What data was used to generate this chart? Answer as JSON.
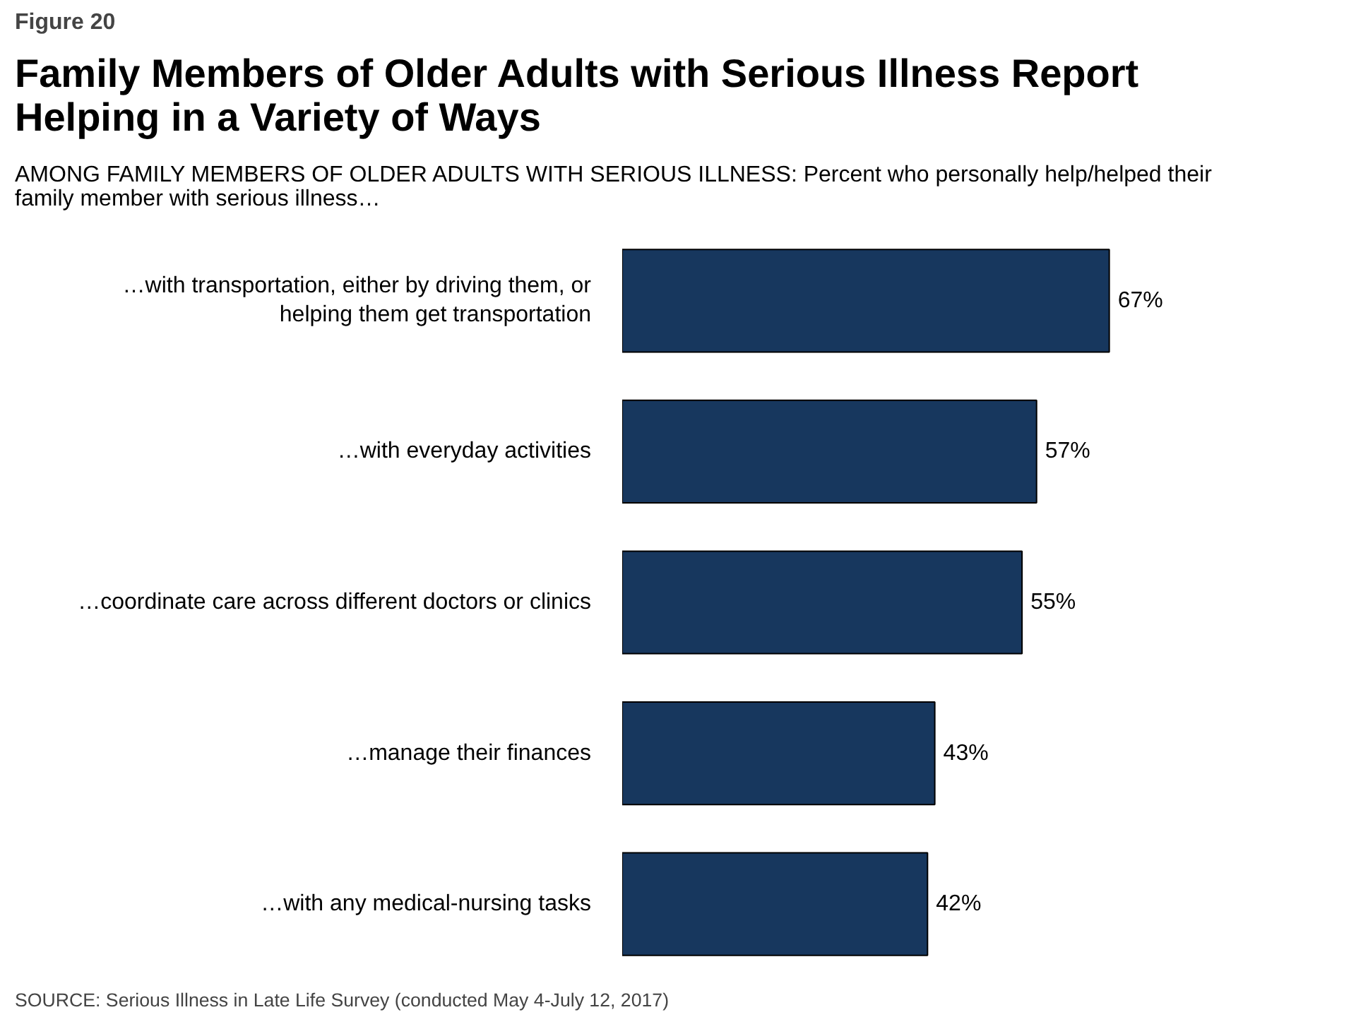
{
  "chart_data": {
    "type": "bar",
    "orientation": "horizontal",
    "data_labels": true,
    "title": "Family Members of Older Adults with Serious Illness Report Helping in a Variety of Ways",
    "subtitle": "AMONG FAMILY MEMBERS OF OLDER ADULTS WITH SERIOUS ILLNESS: Percent who personally help/helped their family member with serious illness…",
    "categories": [
      "…with transportation, either by driving them, or helping them get transportation",
      "…with everyday activities",
      "…coordinate care across different doctors or clinics",
      "…manage their finances",
      "…with any medical-nursing tasks"
    ],
    "values": [
      67,
      57,
      55,
      43,
      42
    ],
    "value_labels": [
      "67%",
      "57%",
      "55%",
      "43%",
      "42%"
    ],
    "color": "#17375e",
    "annotations": [
      "Figure 20",
      "SOURCE: Serious Illness in Late Life Survey (conducted May 4-July 12, 2017)"
    ]
  }
}
